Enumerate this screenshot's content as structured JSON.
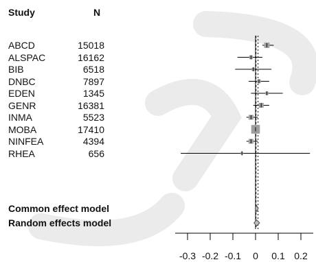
{
  "headers": {
    "study": "Study",
    "n": "N"
  },
  "models": {
    "common": "Common effect model",
    "random": "Random effects model"
  },
  "chart_data": {
    "type": "forest",
    "x_ticks": [
      -0.3,
      -0.2,
      -0.1,
      0,
      0.1,
      0.2
    ],
    "x_tick_labels": [
      "-0.3",
      "-0.2",
      "-0.1",
      "0",
      "0.1",
      "0.2"
    ],
    "xlim": [
      -0.33,
      0.24
    ],
    "studies": [
      {
        "study": "ABCD",
        "n": "15018",
        "est": 0.05,
        "lo": 0.03,
        "hi": 0.08,
        "w": 3.0
      },
      {
        "study": "ALSPAC",
        "n": "16162",
        "est": -0.02,
        "lo": -0.08,
        "hi": 0.03,
        "w": 1.5
      },
      {
        "study": "BIB",
        "n": "6518",
        "est": -0.01,
        "lo": -0.09,
        "hi": 0.07,
        "w": 1.0
      },
      {
        "study": "DNBC",
        "n": "7897",
        "est": 0.015,
        "lo": -0.03,
        "hi": 0.06,
        "w": 1.5
      },
      {
        "study": "EDEN",
        "n": "1345",
        "est": 0.05,
        "lo": -0.02,
        "hi": 0.12,
        "w": 1.0
      },
      {
        "study": "GENR",
        "n": "16381",
        "est": 0.025,
        "lo": -0.01,
        "hi": 0.06,
        "w": 2.5
      },
      {
        "study": "INMA",
        "n": "5523",
        "est": -0.02,
        "lo": -0.04,
        "hi": 0.01,
        "w": 2.5
      },
      {
        "study": "MOBA",
        "n": "17410",
        "est": 0.0,
        "lo": -0.01,
        "hi": 0.01,
        "w": 6.0
      },
      {
        "study": "NINFEA",
        "n": "4394",
        "est": -0.02,
        "lo": -0.04,
        "hi": 0.01,
        "w": 2.5
      },
      {
        "study": "RHEA",
        "n": "656",
        "est": -0.06,
        "lo": -0.33,
        "hi": 0.24,
        "w": 0.5
      }
    ],
    "common_effect": {
      "est": 0.005,
      "lo": -0.002,
      "hi": 0.012
    },
    "random_effects": {
      "est": 0.005,
      "lo": -0.007,
      "hi": 0.018
    },
    "colors": {
      "box": "#9e9e9e",
      "line": "#000000",
      "diamond": "#bdbdbd",
      "watermark": "#ebebeb"
    }
  }
}
